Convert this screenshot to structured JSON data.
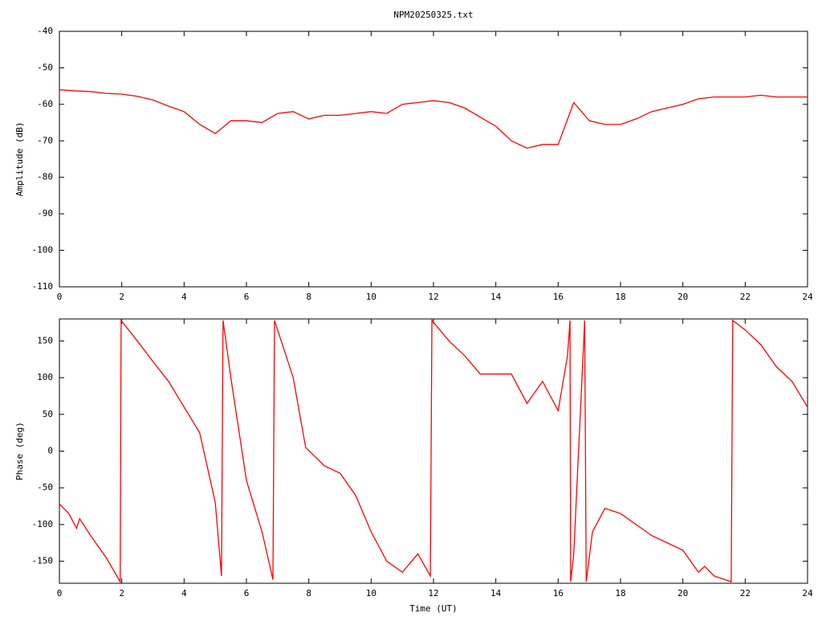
{
  "chart_data": [
    {
      "type": "line",
      "title": "NPM20250325.txt",
      "y_label": "Amplitude (dB)",
      "x": [
        0,
        0.5,
        1,
        1.5,
        2,
        2.5,
        3,
        3.5,
        4,
        4.5,
        5,
        5.5,
        6,
        6.5,
        7,
        7.5,
        8,
        8.5,
        9,
        9.5,
        10,
        10.5,
        11,
        11.5,
        12,
        12.5,
        13,
        13.5,
        14,
        14.5,
        15,
        15.5,
        16,
        16.5,
        17,
        17.5,
        18,
        18.5,
        19,
        19.5,
        20,
        20.5,
        21,
        21.5,
        22,
        22.5,
        23,
        23.5,
        24
      ],
      "series": [
        {
          "name": null,
          "color": "#ff0000",
          "values": [
            -56,
            -56.3,
            -56.5,
            -57,
            -57.2,
            -57.8,
            -58.8,
            -60.5,
            -62,
            -65.5,
            -68,
            -64.5,
            -64.5,
            -65,
            -62.5,
            -62,
            -64,
            -63,
            -63,
            -62.5,
            -62,
            -62.5,
            -60,
            -59.5,
            -59,
            -59.5,
            -61,
            -63.5,
            -66,
            -70,
            -72,
            -71,
            -71,
            -59.5,
            -64.5,
            -65.5,
            -65.5,
            -64,
            -62,
            -61,
            -60,
            -58.5,
            -58,
            -58,
            -58,
            -57.5,
            -58,
            -58,
            -58
          ]
        }
      ],
      "xlim": [
        0,
        24
      ],
      "xticks": [
        0,
        2,
        4,
        6,
        8,
        10,
        12,
        14,
        16,
        18,
        20,
        22,
        24
      ],
      "ylim": [
        -110,
        -40
      ],
      "yticks": [
        -110,
        -100,
        -90,
        -80,
        -70,
        -60,
        -50,
        -40
      ]
    },
    {
      "type": "line",
      "y_label": "Phase (deg)",
      "x_label": "Time (UT)",
      "x": [
        0,
        0.3,
        0.55,
        0.65,
        1,
        1.5,
        1.95,
        1.98,
        2.5,
        3,
        3.5,
        4,
        4.5,
        5,
        5.2,
        5.25,
        5.5,
        6,
        6.5,
        6.85,
        6.9,
        7.5,
        7.9,
        8.5,
        9,
        9.5,
        10,
        10.5,
        11,
        11.5,
        11.9,
        11.95,
        12.5,
        13,
        13.5,
        14,
        14.5,
        15,
        15.5,
        16,
        16.3,
        16.38,
        16.4,
        16.5,
        16.85,
        16.9,
        17.1,
        17.5,
        18,
        18.5,
        19,
        19.5,
        20,
        20.5,
        20.7,
        21,
        21.55,
        21.6,
        22,
        22.5,
        23,
        23.5,
        24
      ],
      "series": [
        {
          "name": null,
          "color": "#ff0000",
          "values": [
            -72,
            -85,
            -105,
            -92,
            -115,
            -145,
            -178,
            178,
            150,
            122,
            95,
            60,
            25,
            -70,
            -170,
            178,
            100,
            -40,
            -110,
            -175,
            178,
            100,
            5,
            -20,
            -30,
            -60,
            -110,
            -150,
            -165,
            -140,
            -170,
            178,
            150,
            130,
            105,
            105,
            105,
            65,
            95,
            55,
            130,
            178,
            -178,
            -140,
            178,
            -178,
            -110,
            -78,
            -85,
            -100,
            -115,
            -125,
            -135,
            -165,
            -157,
            -170,
            -178,
            178,
            165,
            145,
            115,
            95,
            60
          ]
        }
      ],
      "xlim": [
        0,
        24
      ],
      "xticks": [
        0,
        2,
        4,
        6,
        8,
        10,
        12,
        14,
        16,
        18,
        20,
        22,
        24
      ],
      "ylim": [
        -180,
        180
      ],
      "yticks": [
        -150,
        -100,
        -50,
        0,
        50,
        100,
        150
      ]
    }
  ]
}
